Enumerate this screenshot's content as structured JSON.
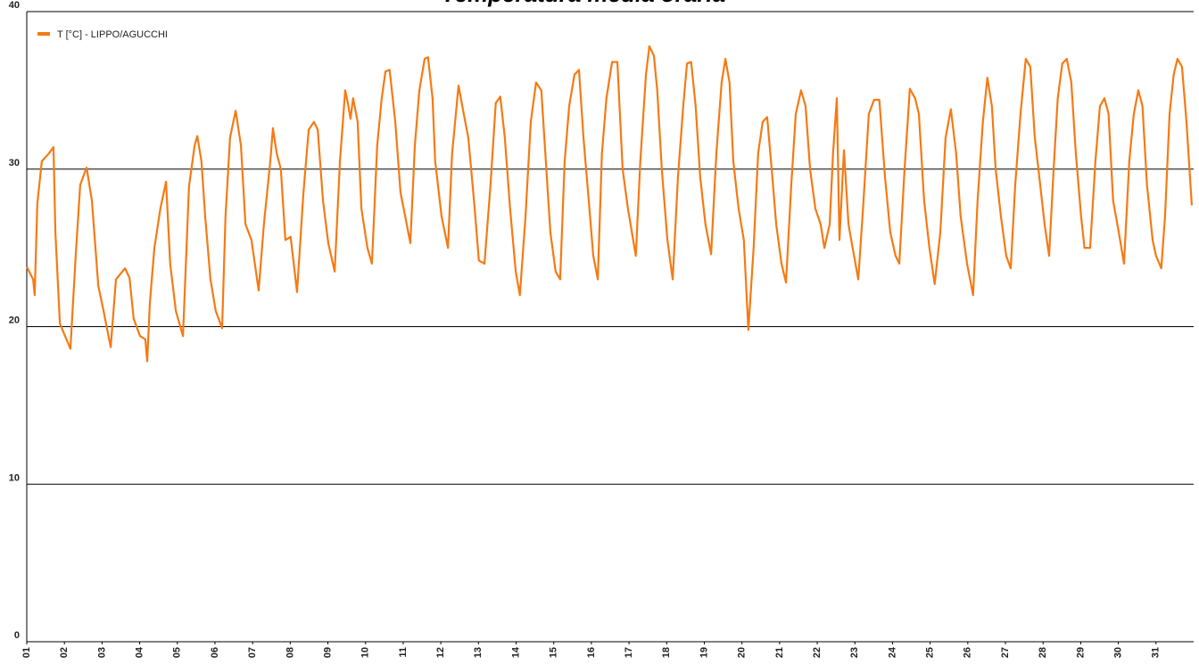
{
  "chart_data": {
    "type": "line",
    "title": "Temperatura media oraria",
    "x": [
      1.0,
      1.17,
      1.21,
      1.28,
      1.4,
      1.59,
      1.71,
      1.76,
      1.88,
      2.0,
      2.16,
      2.3,
      2.42,
      2.59,
      2.73,
      2.9,
      3.04,
      3.23,
      3.37,
      3.61,
      3.73,
      3.84,
      4.01,
      4.15,
      4.2,
      4.27,
      4.39,
      4.55,
      4.7,
      4.81,
      4.96,
      5.15,
      5.31,
      5.46,
      5.53,
      5.64,
      5.74,
      5.88,
      6.02,
      6.19,
      6.28,
      6.4,
      6.55,
      6.69,
      6.81,
      6.97,
      7.16,
      7.3,
      7.47,
      7.54,
      7.64,
      7.75,
      7.87,
      8.01,
      8.18,
      8.35,
      8.49,
      8.63,
      8.73,
      8.87,
      9.01,
      9.18,
      9.32,
      9.46,
      9.53,
      9.6,
      9.67,
      9.79,
      9.89,
      10.05,
      10.17,
      10.31,
      10.43,
      10.53,
      10.64,
      10.79,
      10.93,
      11.07,
      11.19,
      11.31,
      11.43,
      11.57,
      11.66,
      11.78,
      11.85,
      12.02,
      12.19,
      12.3,
      12.47,
      12.61,
      12.73,
      12.9,
      13.01,
      13.16,
      13.32,
      13.46,
      13.58,
      13.7,
      13.84,
      13.99,
      14.1,
      14.25,
      14.39,
      14.53,
      14.67,
      14.79,
      14.91,
      15.05,
      15.17,
      15.29,
      15.41,
      15.55,
      15.67,
      15.79,
      15.93,
      16.05,
      16.17,
      16.28,
      16.4,
      16.55,
      16.69,
      16.83,
      16.97,
      17.11,
      17.18,
      17.3,
      17.45,
      17.54,
      17.66,
      17.75,
      17.87,
      18.02,
      18.16,
      18.3,
      18.44,
      18.54,
      18.65,
      18.77,
      18.89,
      19.03,
      19.18,
      19.32,
      19.46,
      19.56,
      19.67,
      19.77,
      19.91,
      20.05,
      20.17,
      20.31,
      20.43,
      20.55,
      20.67,
      20.79,
      20.91,
      21.05,
      21.17,
      21.31,
      21.43,
      21.57,
      21.69,
      21.81,
      21.95,
      22.09,
      22.19,
      22.33,
      22.42,
      22.52,
      22.59,
      22.71,
      22.83,
      22.94,
      23.09,
      23.23,
      23.37,
      23.51,
      23.65,
      23.8,
      23.94,
      24.08,
      24.18,
      24.32,
      24.46,
      24.6,
      24.7,
      24.84,
      24.98,
      25.12,
      25.27,
      25.41,
      25.55,
      25.69,
      25.81,
      25.98,
      26.14,
      26.26,
      26.4,
      26.52,
      26.64,
      26.74,
      26.88,
      27.02,
      27.14,
      27.26,
      27.4,
      27.54,
      27.66,
      27.78,
      27.9,
      28.04,
      28.16,
      28.28,
      28.39,
      28.51,
      28.63,
      28.75,
      28.87,
      29.01,
      29.1,
      29.25,
      29.39,
      29.51,
      29.63,
      29.74,
      29.86,
      30.01,
      30.15,
      30.29,
      30.41,
      30.53,
      30.64,
      30.76,
      30.91,
      31.0,
      31.14,
      31.24,
      31.36,
      31.47,
      31.57,
      31.69,
      31.81,
      31.95
    ],
    "series": [
      {
        "name": "T [°C] - LIPPO/AGUCCHI",
        "color": "#f57a14",
        "values": [
          23.8,
          23,
          22,
          27.8,
          30.5,
          31,
          31.4,
          26,
          20.2,
          19.5,
          18.6,
          24.5,
          29,
          30.1,
          28,
          22.6,
          21,
          18.7,
          23,
          23.7,
          23.1,
          20.5,
          19.4,
          19.2,
          17.8,
          21.5,
          25,
          27.5,
          29.2,
          24,
          21,
          19.4,
          28.9,
          31.5,
          32.1,
          30.5,
          27,
          23,
          21,
          19.9,
          27,
          32,
          33.7,
          31.5,
          26.5,
          25.5,
          22.3,
          26.5,
          30.5,
          32.6,
          31,
          30,
          25.5,
          25.7,
          22.2,
          28.5,
          32.5,
          33,
          32.5,
          28,
          25.3,
          23.5,
          30.5,
          35,
          34.2,
          33.2,
          34.5,
          33,
          27.5,
          25,
          24,
          31.5,
          34.5,
          36.2,
          36.3,
          33,
          28.5,
          26.8,
          25.3,
          31.5,
          35,
          37,
          37.1,
          34.5,
          30.5,
          27,
          25,
          31,
          35.3,
          33.5,
          32,
          27.5,
          24.2,
          24,
          29,
          34.2,
          34.6,
          32,
          27.5,
          23.5,
          22,
          27,
          33,
          35.5,
          35,
          30.5,
          26,
          23.5,
          23,
          30.5,
          34,
          36,
          36.3,
          32,
          28,
          24.5,
          23,
          31,
          34.5,
          36.8,
          36.8,
          30,
          27.5,
          25.5,
          24.5,
          30.5,
          36,
          37.8,
          37.2,
          35,
          30,
          25.5,
          23,
          29.5,
          34,
          36.7,
          36.8,
          34,
          29.5,
          26.5,
          24.6,
          31,
          35.5,
          37,
          35.5,
          30.5,
          27.5,
          25.5,
          19.8,
          25,
          31,
          33,
          33.3,
          30,
          26.5,
          24,
          22.8,
          29,
          33.5,
          35,
          34,
          30,
          27.5,
          26.5,
          25,
          26.5,
          31,
          34.5,
          25.5,
          31.2,
          26.5,
          25,
          23,
          28,
          33.5,
          34.4,
          34.4,
          29.5,
          26,
          24.5,
          24,
          30,
          35.1,
          34.5,
          33.5,
          28,
          25,
          22.7,
          26,
          32,
          33.8,
          31,
          27,
          24,
          22,
          28,
          33,
          35.8,
          34,
          30,
          27,
          24.5,
          23.7,
          29,
          33.5,
          37,
          36.5,
          32,
          29.5,
          26.5,
          24.5,
          30,
          34.5,
          36.7,
          37,
          35.5,
          31,
          27,
          25,
          25,
          30.5,
          34,
          34.5,
          33.5,
          28,
          26,
          24,
          30.5,
          33.5,
          35,
          34,
          29,
          25.5,
          24.5,
          23.7,
          27,
          33.5,
          36,
          37,
          36.5,
          33,
          27.7
        ]
      }
    ],
    "xlim": [
      1,
      32
    ],
    "xticks": [
      {
        "value": 1,
        "label": "01"
      },
      {
        "value": 2,
        "label": "02"
      },
      {
        "value": 3,
        "label": "03"
      },
      {
        "value": 4,
        "label": "04"
      },
      {
        "value": 5,
        "label": "05"
      },
      {
        "value": 6,
        "label": "06"
      },
      {
        "value": 7,
        "label": "07"
      },
      {
        "value": 8,
        "label": "08"
      },
      {
        "value": 9,
        "label": "09"
      },
      {
        "value": 10,
        "label": "10"
      },
      {
        "value": 11,
        "label": "11"
      },
      {
        "value": 12,
        "label": "12"
      },
      {
        "value": 13,
        "label": "13"
      },
      {
        "value": 14,
        "label": "14"
      },
      {
        "value": 15,
        "label": "15"
      },
      {
        "value": 16,
        "label": "16"
      },
      {
        "value": 17,
        "label": "17"
      },
      {
        "value": 18,
        "label": "18"
      },
      {
        "value": 19,
        "label": "19"
      },
      {
        "value": 20,
        "label": "20"
      },
      {
        "value": 21,
        "label": "21"
      },
      {
        "value": 22,
        "label": "22"
      },
      {
        "value": 23,
        "label": "23"
      },
      {
        "value": 24,
        "label": "24"
      },
      {
        "value": 25,
        "label": "25"
      },
      {
        "value": 26,
        "label": "26"
      },
      {
        "value": 27,
        "label": "27"
      },
      {
        "value": 28,
        "label": "28"
      },
      {
        "value": 29,
        "label": "29"
      },
      {
        "value": 30,
        "label": "30"
      },
      {
        "value": 31,
        "label": "31"
      }
    ],
    "ylim": [
      0,
      40
    ],
    "yticks": [
      0,
      10,
      20,
      30,
      40
    ],
    "grid": true,
    "legend": "top-left"
  }
}
